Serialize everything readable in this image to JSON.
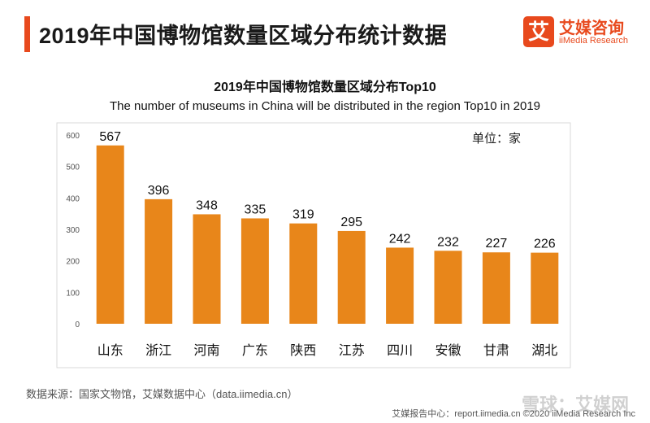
{
  "header": {
    "title": "2019年中国博物馆数量区域分布统计数据"
  },
  "logo": {
    "mark": "艾",
    "name_cn": "艾媒咨询",
    "name_en": "iiMedia Research"
  },
  "colors": {
    "accent": "#e8491d",
    "bar": "#e8861a"
  },
  "chart_data": {
    "type": "bar",
    "title": "2019年中国博物馆数量区域分布Top10",
    "subtitle": "The number of museums in China will be distributed in the region Top10 in 2019",
    "unit": "单位：家",
    "categories": [
      "山东",
      "浙江",
      "河南",
      "广东",
      "陕西",
      "江苏",
      "四川",
      "安徽",
      "甘肃",
      "湖北"
    ],
    "values": [
      567,
      396,
      348,
      335,
      319,
      295,
      242,
      232,
      227,
      226
    ],
    "ylim": [
      0,
      600
    ],
    "yticks": [
      0,
      100,
      200,
      300,
      400,
      500,
      600
    ],
    "grid": false,
    "data_labels": true
  },
  "source": "数据来源：国家文物馆，艾媒数据中心（data.iimedia.cn）",
  "footer": "艾媒报告中心：report.iimedia.cn  ©2020  iiMedia Research  Inc",
  "watermark": "雪球：艾媒网"
}
